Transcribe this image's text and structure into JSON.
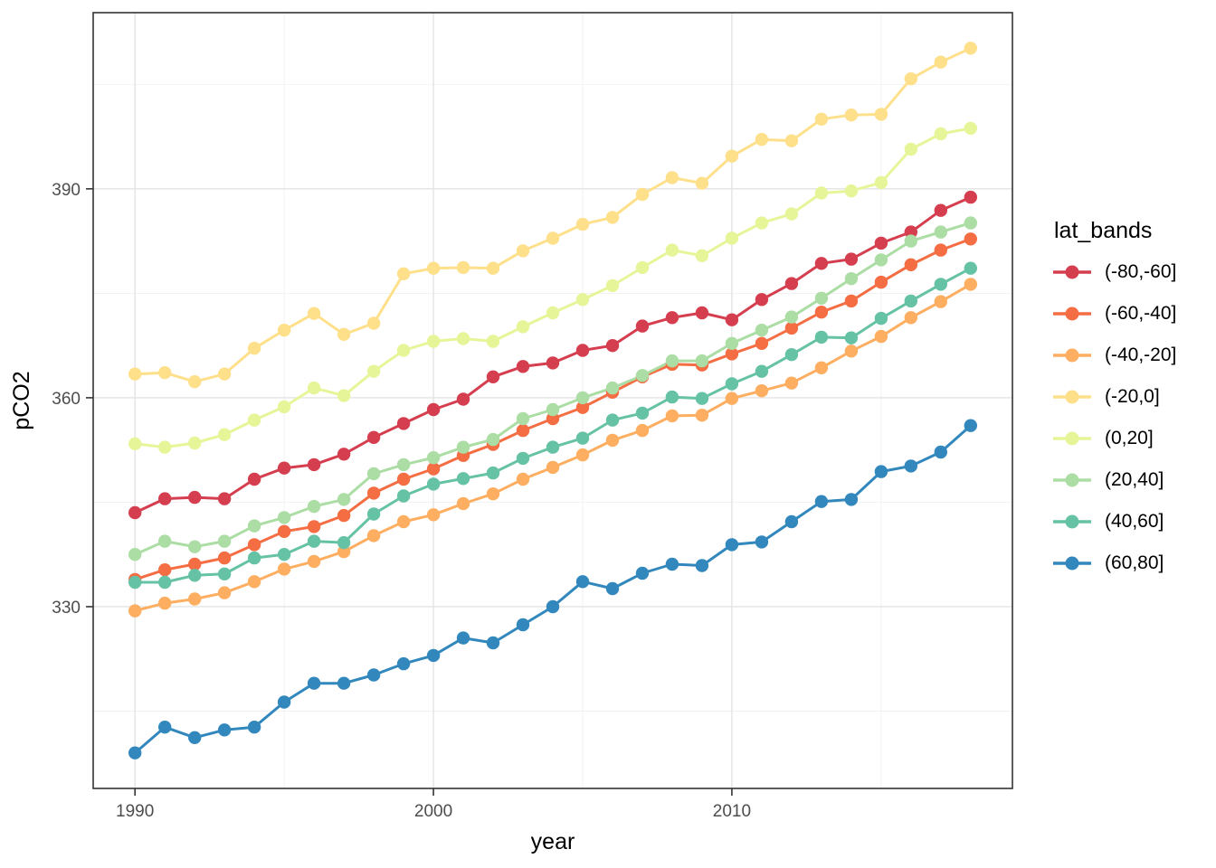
{
  "figure": {
    "kind": "ggplot-line-chart",
    "background": "#ffffff",
    "panel_border_color": "#333333",
    "grid_major_color": "#e3e3e3",
    "grid_minor_color": "#f1f1f1",
    "tick_color": "#333333",
    "tick_text_color": "#4d4d4d"
  },
  "chart_data": {
    "type": "line",
    "title": "",
    "xlabel": "year",
    "ylabel": "pCO2",
    "legend_title": "lat_bands",
    "legend_position": "right",
    "grid": true,
    "xlim": [
      1988.6,
      2019.4
    ],
    "ylim": [
      303.9,
      415.3
    ],
    "x_ticks": [
      1990,
      2000,
      2010
    ],
    "x_minor": [
      1995,
      2005,
      2015
    ],
    "y_ticks": [
      330,
      360,
      390
    ],
    "y_minor": [
      315,
      345,
      375,
      405
    ],
    "x": [
      1990,
      1991,
      1992,
      1993,
      1994,
      1995,
      1996,
      1997,
      1998,
      1999,
      2000,
      2001,
      2002,
      2003,
      2004,
      2005,
      2006,
      2007,
      2008,
      2009,
      2010,
      2011,
      2012,
      2013,
      2014,
      2015,
      2016,
      2017,
      2018
    ],
    "series": [
      {
        "name": "(-80,-60]",
        "color": "#d53e4f",
        "values": [
          343.5,
          345.5,
          345.7,
          345.5,
          348.3,
          349.9,
          350.4,
          351.9,
          354.3,
          356.3,
          358.3,
          359.8,
          363.0,
          364.5,
          365.0,
          366.8,
          367.5,
          370.3,
          371.5,
          372.2,
          371.2,
          374.1,
          376.4,
          379.3,
          379.9,
          382.2,
          383.8,
          386.9,
          388.8
        ]
      },
      {
        "name": "(-60,-40]",
        "color": "#f46d43",
        "values": [
          333.9,
          335.3,
          336.1,
          337.0,
          338.9,
          340.8,
          341.5,
          343.1,
          346.3,
          348.3,
          349.8,
          351.7,
          353.3,
          355.3,
          357.0,
          358.6,
          360.8,
          363.0,
          364.8,
          364.7,
          366.3,
          367.8,
          370.0,
          372.3,
          373.9,
          376.6,
          379.1,
          381.2,
          382.8
        ]
      },
      {
        "name": "(-40,-20]",
        "color": "#fdae61",
        "values": [
          329.4,
          330.5,
          331.1,
          332.0,
          333.6,
          335.4,
          336.5,
          337.9,
          340.2,
          342.2,
          343.2,
          344.8,
          346.2,
          348.3,
          350.0,
          351.8,
          353.9,
          355.3,
          357.4,
          357.5,
          359.9,
          361.0,
          362.1,
          364.3,
          366.7,
          368.8,
          371.5,
          373.8,
          376.3
        ]
      },
      {
        "name": "(-20,0]",
        "color": "#fee08b",
        "values": [
          363.4,
          363.6,
          362.3,
          363.4,
          367.1,
          369.7,
          372.1,
          369.1,
          370.7,
          377.8,
          378.6,
          378.7,
          378.6,
          381.1,
          382.9,
          384.9,
          385.9,
          389.2,
          391.6,
          390.8,
          394.7,
          397.1,
          396.9,
          400.0,
          400.6,
          400.7,
          405.8,
          408.2,
          410.2
        ]
      },
      {
        "name": "(0,20]",
        "color": "#e6f598",
        "values": [
          353.4,
          352.9,
          353.5,
          354.7,
          356.8,
          358.7,
          361.4,
          360.3,
          363.8,
          366.8,
          368.1,
          368.5,
          368.1,
          370.2,
          372.2,
          374.1,
          376.1,
          378.7,
          381.2,
          380.4,
          382.9,
          385.1,
          386.4,
          389.4,
          389.7,
          390.9,
          395.7,
          397.9,
          398.7
        ]
      },
      {
        "name": "(20,40]",
        "color": "#abdda4",
        "values": [
          337.5,
          339.4,
          338.6,
          339.4,
          341.6,
          342.8,
          344.4,
          345.4,
          349.1,
          350.4,
          351.4,
          352.9,
          354.0,
          357.0,
          358.3,
          360.0,
          361.4,
          363.2,
          365.3,
          365.3,
          367.8,
          369.7,
          371.6,
          374.3,
          377.1,
          379.8,
          382.5,
          383.8,
          385.1
        ]
      },
      {
        "name": "(40,60]",
        "color": "#66c2a5",
        "values": [
          333.5,
          333.5,
          334.5,
          334.7,
          337.0,
          337.5,
          339.4,
          339.2,
          343.3,
          345.9,
          347.6,
          348.4,
          349.2,
          351.3,
          352.9,
          354.2,
          356.8,
          357.8,
          360.1,
          359.9,
          362.0,
          363.8,
          366.2,
          368.7,
          368.6,
          371.4,
          373.9,
          376.3,
          378.6
        ]
      },
      {
        "name": "(60,80]",
        "color": "#3288bd",
        "values": [
          309.0,
          312.7,
          311.2,
          312.3,
          312.7,
          316.3,
          319.0,
          319.0,
          320.2,
          321.8,
          323.0,
          325.5,
          324.8,
          327.4,
          330.0,
          333.6,
          332.6,
          334.8,
          336.1,
          335.9,
          338.9,
          339.3,
          342.2,
          345.1,
          345.4,
          349.4,
          350.2,
          352.2,
          356.0
        ]
      }
    ]
  }
}
